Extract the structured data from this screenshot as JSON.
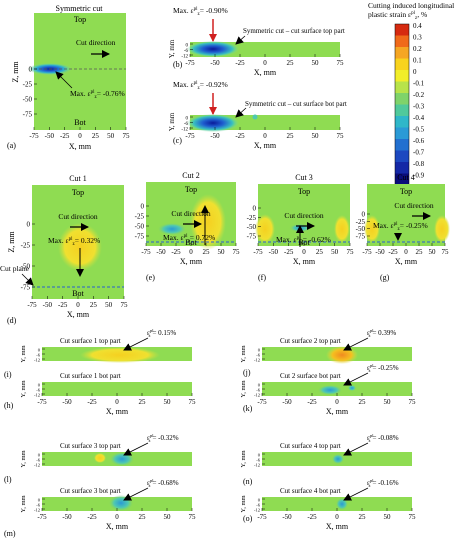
{
  "panelA": {
    "title": "Symmetric cut",
    "top": "Top",
    "bot": "Bot",
    "cut_direction": "Cut direction",
    "max_label": "Max. ε",
    "max_value": "= -0.76%",
    "ylabel": "Z, mm",
    "xlabel": "X, mm",
    "letter": "(a)",
    "xticks": [
      "-75",
      "-50",
      "-25",
      "0",
      "25",
      "50",
      "75"
    ],
    "yticks": [
      "0",
      "-25",
      "-50",
      "-75"
    ]
  },
  "panelB": {
    "max_label": "Max. ε",
    "max_value": "= -0.90%",
    "caption": "Symmetric cut – cut surface top part",
    "letter": "(b)",
    "ylabel": "Y, mm",
    "xlabel": "X, mm",
    "yticks": [
      "0",
      "-6",
      "-12"
    ],
    "xticks": [
      "-75",
      "-50",
      "-25",
      "0",
      "25",
      "50",
      "75"
    ]
  },
  "panelC": {
    "max_label": "Max. ε",
    "max_value": "= -0.92%",
    "caption": "Symmetric cut – cut surface bot part",
    "letter": "(c)",
    "ylabel": "Y, mm",
    "xlabel": "X, mm",
    "yticks": [
      "0",
      "-6",
      "-12"
    ],
    "xticks": [
      "-75",
      "-50",
      "-25",
      "0",
      "25",
      "50",
      "75"
    ]
  },
  "colorbar": {
    "title_line1": "Cutting induced longitudinal",
    "title_line2": "plastic strain ε",
    "title_unit": ", %",
    "ticks": [
      "0.4",
      "0.3",
      "0.2",
      "0.1",
      "0",
      "-0.1",
      "-0.2",
      "-0.3",
      "-0.4",
      "-0.5",
      "-0.6",
      "-0.7",
      "-0.8",
      "-0.9"
    ],
    "colors": [
      "#d62a10",
      "#f06a1a",
      "#f5a623",
      "#f8d31e",
      "#f2ee2a",
      "#b8e34a",
      "#7fd36a",
      "#50c99b",
      "#2fb7c9",
      "#2a9ad6",
      "#2270d0",
      "#1c48c0",
      "#1428a6",
      "#0a0d7a"
    ]
  },
  "cuts": [
    {
      "title": "Cut 1",
      "top": "Top",
      "bot": "Bot",
      "cut_direction": "Cut direction",
      "max_label": "Max. ε",
      "max_value": "= 0.32%",
      "letter": "(d)"
    },
    {
      "title": "Cut 2",
      "top": "Top",
      "bot": "Bot",
      "cut_direction": "Cut direction",
      "max_label": "Max. ε",
      "max_value": "= 0.72%",
      "letter": "(e)"
    },
    {
      "title": "Cut 3",
      "top": "Top",
      "bot": "Bot",
      "cut_direction": "Cut direction",
      "max_label": "Max. ε",
      "max_value": "= -0.62%",
      "letter": "(f)"
    },
    {
      "title": "Cut 4",
      "top": "Top",
      "bot": "",
      "cut_direction": "Cut direction",
      "max_label": "Max. ε",
      "max_value": "= -0.25%",
      "letter": "(g)"
    }
  ],
  "cut_plane": "Cut plane",
  "cutsAxis": {
    "ylabel": "Z, mm",
    "xlabel": "X, mm",
    "yticks": [
      "0",
      "-25",
      "-50",
      "-75"
    ],
    "xticks": [
      "-75",
      "-50",
      "-25",
      "0",
      "25",
      "50",
      "75"
    ]
  },
  "surfaces": [
    {
      "letter": "(h)",
      "caption": "Cut surface 1 top part",
      "eps": "= 0.15%"
    },
    {
      "letter": "(i)",
      "caption": "Cut surface 1 bot part",
      "eps": ""
    },
    {
      "letter": "(j)",
      "caption": "Cut surface 2 top part",
      "eps": "= 0.39%"
    },
    {
      "letter": "(k)",
      "caption": "Cut 2 surface bot part",
      "eps": "= -0.25%"
    },
    {
      "letter": "(l)",
      "caption": "Cut surface 3 top part",
      "eps": "= -0.32%"
    },
    {
      "letter": "(m)",
      "caption": "Cut surface 3 bot part",
      "eps": "= -0.68%"
    },
    {
      "letter": "(n)",
      "caption": "Cut surface 4 top part",
      "eps": "= -0.08%"
    },
    {
      "letter": "(o)",
      "caption": "Cut surface 4 bot part",
      "eps": "= -0.16%"
    }
  ],
  "eps_symbol": "ε",
  "surfAxis": {
    "ylabel": "Y, mm",
    "xlabel": "X, mm",
    "yticks": [
      "0",
      "-6",
      "-12"
    ],
    "xticks": [
      "-75",
      "-50",
      "-25",
      "0",
      "25",
      "50",
      "75"
    ]
  }
}
